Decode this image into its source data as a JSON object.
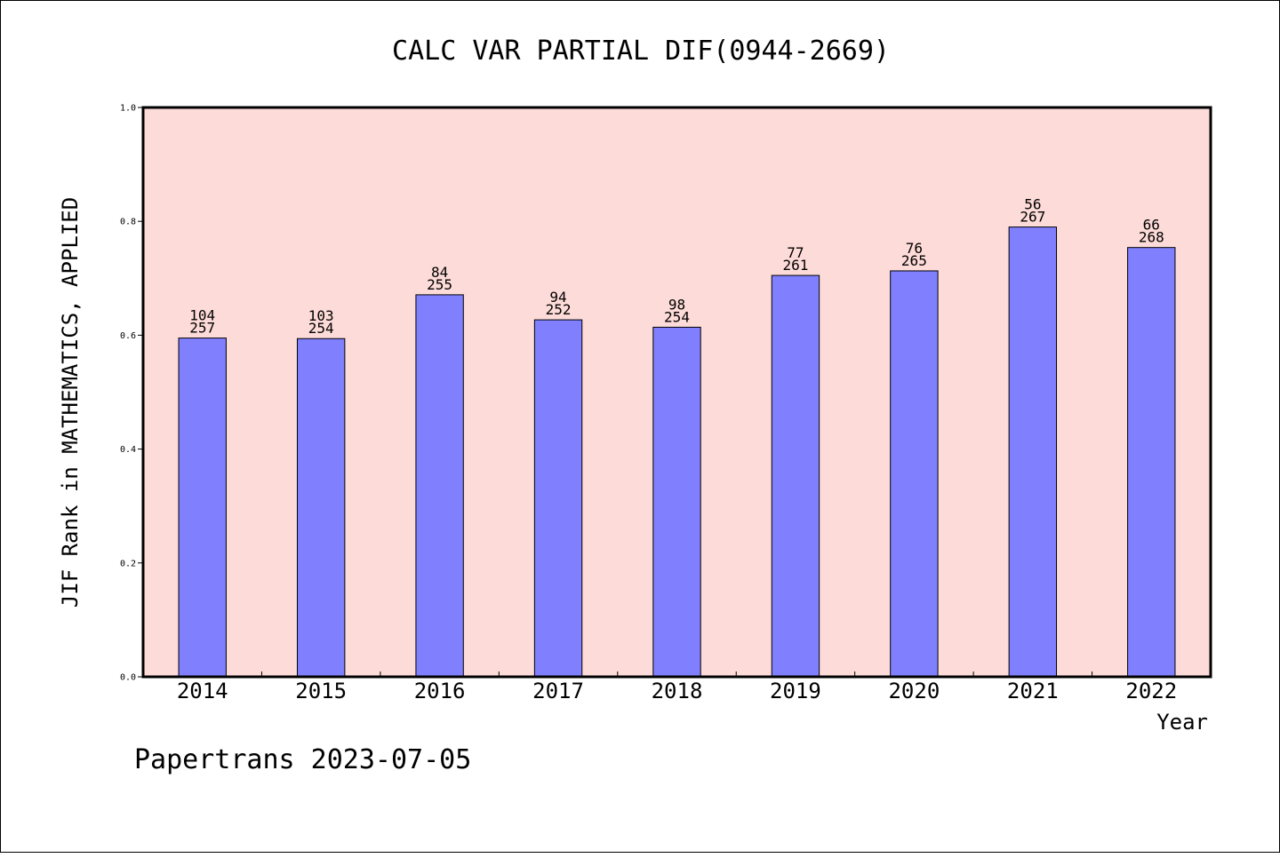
{
  "chart_data": {
    "type": "bar",
    "title": "CALC VAR PARTIAL DIF(0944-2669)",
    "xlabel": "Year",
    "ylabel": "JIF Rank in MATHEMATICS, APPLIED",
    "ylim": [
      0,
      1.0
    ],
    "yticks": [
      "0.0",
      "0.2",
      "0.4",
      "0.6",
      "0.8",
      "1.0"
    ],
    "categories": [
      "2014",
      "2015",
      "2016",
      "2017",
      "2018",
      "2019",
      "2020",
      "2021",
      "2022"
    ],
    "values": [
      0.595,
      0.594,
      0.671,
      0.627,
      0.614,
      0.705,
      0.713,
      0.79,
      0.754
    ],
    "rank": [
      "104",
      "103",
      "84",
      "94",
      "98",
      "77",
      "76",
      "56",
      "66"
    ],
    "total": [
      "257",
      "254",
      "255",
      "252",
      "254",
      "261",
      "265",
      "267",
      "268"
    ],
    "grid": false,
    "colors": {
      "plot_background": "#fddbd8",
      "bar_fill": "#8080ff",
      "bar_stroke": "#000000"
    }
  },
  "footer": "Papertrans 2023-07-05"
}
